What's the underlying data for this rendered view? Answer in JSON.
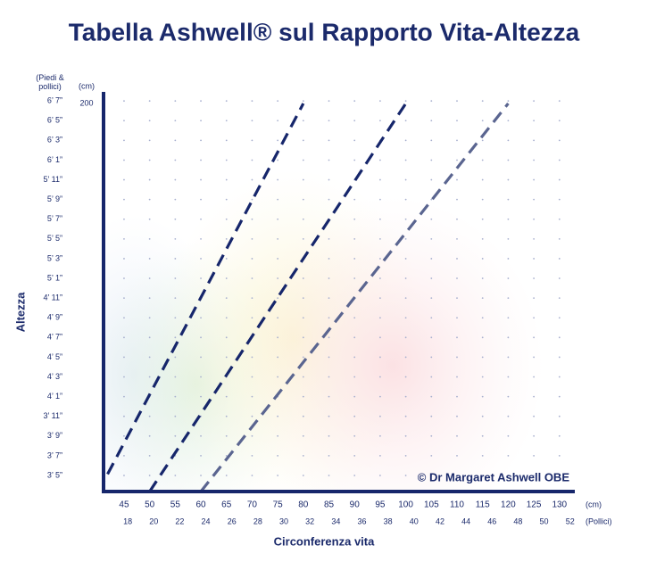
{
  "chart_data": {
    "type": "line",
    "title": "Tabella Ashwell® sul Rapporto Vita-Altezza",
    "xlabel": "Circonferenza vita",
    "ylabel": "Altezza",
    "x_unit": "(cm)",
    "x2_unit": "(Pollici)",
    "y_unit": "(Piedi & pollici)",
    "y2_unit": "(cm)",
    "annotation": "© Dr Margaret Ashwell OBE",
    "xlim": [
      41,
      133
    ],
    "ylim": [
      100,
      203
    ],
    "xticks": [
      45,
      50,
      55,
      60,
      65,
      70,
      75,
      80,
      85,
      90,
      95,
      100,
      105,
      110,
      115,
      120,
      125,
      130
    ],
    "x2ticks": [
      {
        "value": 45.72,
        "label": "18"
      },
      {
        "value": 50.8,
        "label": "20"
      },
      {
        "value": 55.88,
        "label": "22"
      },
      {
        "value": 60.96,
        "label": "24"
      },
      {
        "value": 66.04,
        "label": "26"
      },
      {
        "value": 71.12,
        "label": "28"
      },
      {
        "value": 76.2,
        "label": "30"
      },
      {
        "value": 81.28,
        "label": "32"
      },
      {
        "value": 86.36,
        "label": "34"
      },
      {
        "value": 91.44,
        "label": "36"
      },
      {
        "value": 96.52,
        "label": "38"
      },
      {
        "value": 101.6,
        "label": "40"
      },
      {
        "value": 106.68,
        "label": "42"
      },
      {
        "value": 111.76,
        "label": "44"
      },
      {
        "value": 116.84,
        "label": "46"
      },
      {
        "value": 121.92,
        "label": "48"
      },
      {
        "value": 127,
        "label": "50"
      },
      {
        "value": 132.08,
        "label": "52"
      }
    ],
    "yticks": [
      {
        "value": 104.14,
        "label": "3’ 5”"
      },
      {
        "value": 109.22,
        "label": "3’ 7”"
      },
      {
        "value": 114.3,
        "label": "3’ 9”"
      },
      {
        "value": 119.38,
        "label": "3’ 11”"
      },
      {
        "value": 124.46,
        "label": "4’ 1”"
      },
      {
        "value": 129.54,
        "label": "4’ 3”"
      },
      {
        "value": 134.62,
        "label": "4’ 5”"
      },
      {
        "value": 139.7,
        "label": "4’ 7”"
      },
      {
        "value": 144.78,
        "label": "4’ 9”"
      },
      {
        "value": 149.86,
        "label": "4’ 11”"
      },
      {
        "value": 154.94,
        "label": "5’ 1”"
      },
      {
        "value": 160.02,
        "label": "5’ 3”"
      },
      {
        "value": 165.1,
        "label": "5’ 5”"
      },
      {
        "value": 170.18,
        "label": "5’ 7”"
      },
      {
        "value": 175.26,
        "label": "5’ 9”"
      },
      {
        "value": 180.34,
        "label": "5’ 11”"
      },
      {
        "value": 185.42,
        "label": "6’ 1”"
      },
      {
        "value": 190.5,
        "label": "6’ 3”"
      },
      {
        "value": 195.58,
        "label": "6’ 5”"
      },
      {
        "value": 200.66,
        "label": "6’ 7”"
      }
    ],
    "y2ticks": [
      200
    ],
    "series": [
      {
        "x": [
          40,
          80
        ],
        "values": [
          100,
          200
        ],
        "color": "#16266b"
      },
      {
        "x": [
          50,
          100
        ],
        "values": [
          100,
          200
        ],
        "color": "#16266b"
      },
      {
        "x": [
          60,
          120
        ],
        "values": [
          100,
          200
        ],
        "color": "#5a6590"
      }
    ]
  }
}
